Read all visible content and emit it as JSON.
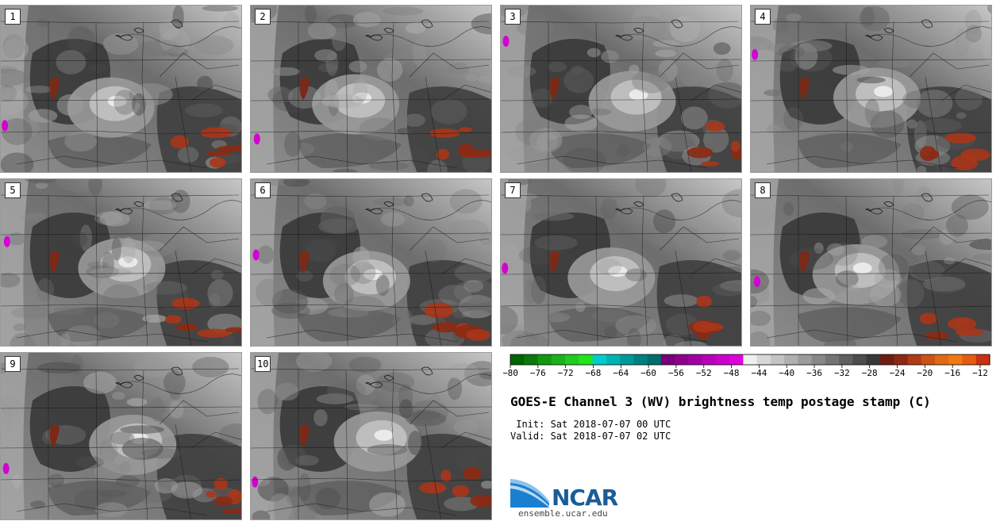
{
  "panels": [
    {
      "label": "1"
    },
    {
      "label": "2"
    },
    {
      "label": "3"
    },
    {
      "label": "4"
    },
    {
      "label": "5"
    },
    {
      "label": "6"
    },
    {
      "label": "7"
    },
    {
      "label": "8"
    },
    {
      "label": "9"
    },
    {
      "label": "10"
    }
  ],
  "colorbar": {
    "ticks": [
      "-80",
      "-76",
      "-72",
      "-68",
      "-64",
      "-60",
      "-56",
      "-52",
      "-48",
      "-44",
      "-40",
      "-36",
      "-32",
      "-28",
      "-24",
      "-20",
      "-16",
      "-12"
    ],
    "colors": [
      "#006400",
      "#0a7a0a",
      "#11990f",
      "#19b319",
      "#20cc1d",
      "#1fe61b",
      "#00cccc",
      "#00b3b3",
      "#009999",
      "#008080",
      "#006d6d",
      "#7a007a",
      "#8f008f",
      "#a300a3",
      "#b800b8",
      "#cc00cc",
      "#e000e0",
      "#f0f0f0",
      "#d8d8d8",
      "#c4c4c4",
      "#b0b0b0",
      "#9c9c9c",
      "#888888",
      "#747474",
      "#606060",
      "#4c4c4c",
      "#383838",
      "#6e1e12",
      "#8c2814",
      "#b03a16",
      "#cc5216",
      "#e06a14",
      "#f07a10",
      "#e85a10",
      "#c83212"
    ]
  },
  "info": {
    "title": "GOES-E Channel 3 (WV) brightness temp postage stamp (C)",
    "init": " Init: Sat 2018-07-07 00 UTC",
    "valid": "Valid: Sat 2018-07-07 02 UTC"
  },
  "logo": {
    "name": "NCAR",
    "url": "ensemble.ucar.edu"
  }
}
